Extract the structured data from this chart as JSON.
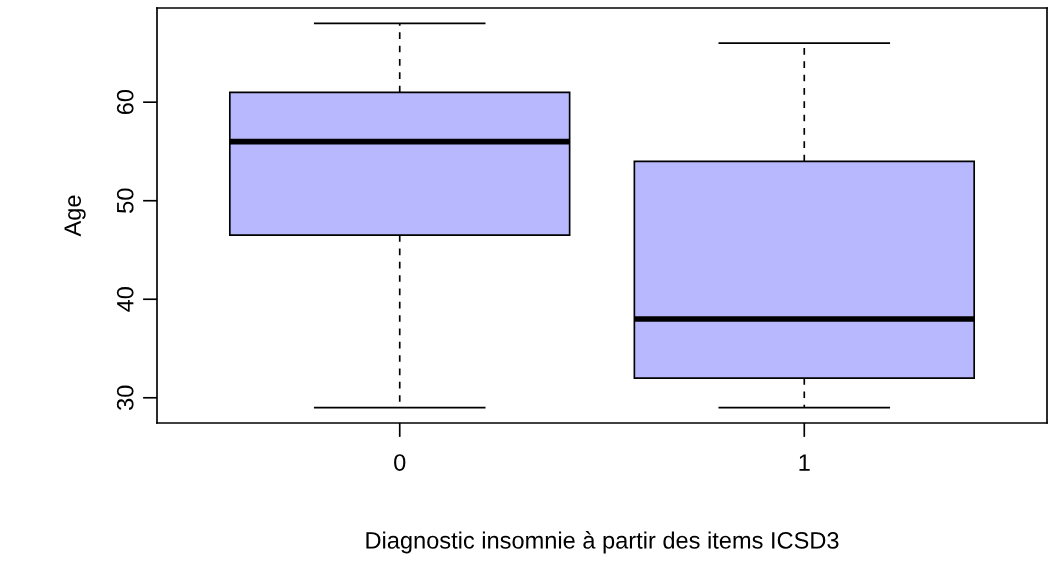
{
  "chart_data": {
    "type": "box",
    "xlabel": "Diagnostic insomnie à partir des items ICSD3",
    "ylabel": "Age",
    "categories": [
      "0",
      "1"
    ],
    "boxes": [
      {
        "low": 29,
        "q1": 46.5,
        "median": 56,
        "q3": 61,
        "high": 68
      },
      {
        "low": 29,
        "q1": 32,
        "median": 38,
        "q3": 54,
        "high": 66
      }
    ],
    "color": "#b8b8ff",
    "ylim": [
      27.44,
      69.56
    ],
    "yticks": [
      30,
      40,
      50,
      60
    ],
    "grid": false
  }
}
